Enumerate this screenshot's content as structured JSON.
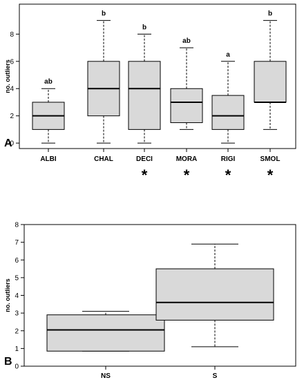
{
  "chart_data": [
    {
      "type": "boxplot",
      "panel_label": "A",
      "ylabel": "no. outliers",
      "ylim": [
        -0.4,
        10.2
      ],
      "yticks": [
        0,
        2,
        4,
        6,
        8
      ],
      "frame": "box",
      "categories": [
        "ALBI",
        "CHAL",
        "DECI",
        "MORA",
        "RIGI",
        "SMOL"
      ],
      "boxes": [
        {
          "whisker_low": 0,
          "q1": 1,
          "median": 2,
          "q3": 3,
          "whisker_high": 4
        },
        {
          "whisker_low": 0,
          "q1": 2,
          "median": 4,
          "q3": 6,
          "whisker_high": 9
        },
        {
          "whisker_low": 0,
          "q1": 1,
          "median": 4,
          "q3": 6,
          "whisker_high": 8
        },
        {
          "whisker_low": 1,
          "q1": 1.5,
          "median": 3,
          "q3": 4,
          "whisker_high": 7
        },
        {
          "whisker_low": 0,
          "q1": 1,
          "median": 2,
          "q3": 3.5,
          "whisker_high": 6
        },
        {
          "whisker_low": 1,
          "q1": 3,
          "median": 3,
          "q3": 6,
          "whisker_high": 9
        }
      ],
      "group_labels": [
        "ab",
        "b",
        "b",
        "ab",
        "a",
        "b"
      ],
      "significance_marks": [
        "",
        "",
        "*",
        "*",
        "*",
        "*"
      ]
    },
    {
      "type": "boxplot",
      "panel_label": "B",
      "ylabel": "no. outliers",
      "ylim": [
        0,
        8
      ],
      "yticks": [
        0,
        1,
        2,
        3,
        4,
        5,
        6,
        7,
        8
      ],
      "frame": "box",
      "categories": [
        "NS",
        "S"
      ],
      "boxes": [
        {
          "whisker_low": 0.85,
          "q1": 0.85,
          "median": 2.05,
          "q3": 2.9,
          "whisker_high": 3.1
        },
        {
          "whisker_low": 1.1,
          "q1": 2.6,
          "median": 3.6,
          "q3": 5.5,
          "whisker_high": 6.9
        }
      ],
      "group_labels": [
        "",
        ""
      ],
      "significance_marks": [
        "",
        ""
      ]
    }
  ]
}
